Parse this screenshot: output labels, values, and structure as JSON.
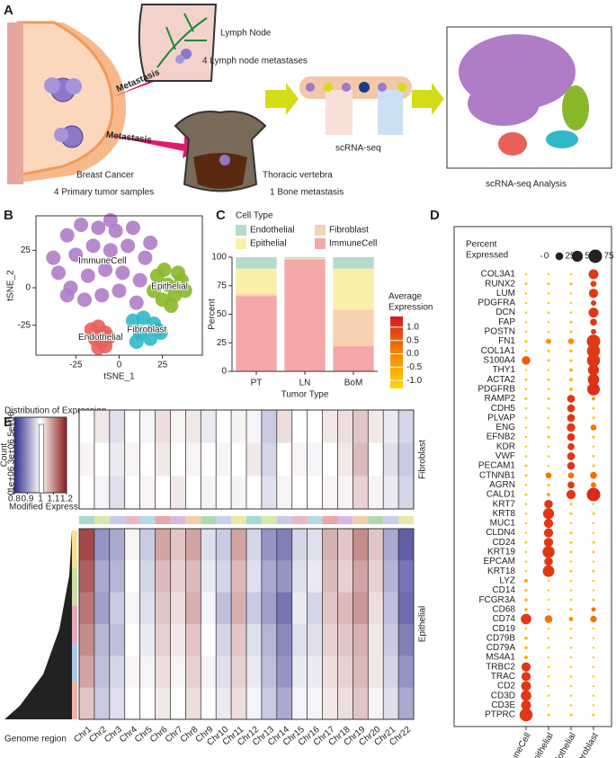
{
  "panel_labels": [
    "A",
    "B",
    "C",
    "D",
    "E"
  ],
  "panel_a": {
    "lymph_node": "Lymph Node",
    "lymph_meta": "4 Lymph node metastases",
    "metastasis": [
      "Metastasis",
      "Metastasis"
    ],
    "breast": "Breast Cancer",
    "primary": "4 Primary tumor samples",
    "vertebra": "Thoracic vertebra",
    "bone": "1 Bone metastasis",
    "scrna": "scRNA-seq",
    "analysis": "scRNA-seq Analysis"
  },
  "chart_data": [
    {
      "type": "scatter",
      "x_label": "tSNE_1",
      "y_label": "tSNE_2",
      "xlim": [
        -48,
        48
      ],
      "ylim": [
        -45,
        48
      ],
      "xticks": [
        -25,
        0,
        25
      ],
      "yticks": [
        -25,
        0,
        25
      ],
      "series": [
        {
          "name": "ImmuneCell",
          "color": "#b07cc6",
          "x": [
            -38,
            -30,
            -22,
            -12,
            -2,
            8,
            18,
            -35,
            -25,
            -15,
            -5,
            5,
            15,
            -28,
            -18,
            -8,
            2,
            12,
            -20,
            -10,
            0,
            10,
            -30,
            -5
          ],
          "y": [
            20,
            35,
            42,
            40,
            38,
            40,
            30,
            10,
            22,
            28,
            25,
            28,
            20,
            0,
            8,
            12,
            10,
            5,
            -8,
            -5,
            -2,
            -10,
            -5,
            45
          ]
        },
        {
          "name": "Epithelial",
          "color": "#8ab82a",
          "x": [
            22,
            28,
            34,
            38,
            25,
            30,
            20,
            32,
            36,
            26
          ],
          "y": [
            8,
            2,
            10,
            -2,
            -8,
            -12,
            -2,
            -5,
            5,
            12
          ]
        },
        {
          "name": "Endothelial",
          "color": "#e8605a",
          "x": [
            -16,
            -12,
            -8,
            -14,
            -10,
            -6,
            -12,
            -8
          ],
          "y": [
            -28,
            -26,
            -30,
            -34,
            -36,
            -33,
            -40,
            -39
          ]
        },
        {
          "name": "Fibroblast",
          "color": "#30b8c8",
          "x": [
            8,
            14,
            20,
            24,
            12,
            18,
            22,
            10
          ],
          "y": [
            -22,
            -20,
            -24,
            -30,
            -30,
            -34,
            -28,
            -36
          ]
        }
      ]
    },
    {
      "type": "bar",
      "legend_title": "Cell Type",
      "x_label": "Tumor Type",
      "y_label": "Percent",
      "categories": [
        "PT",
        "LN",
        "BoM"
      ],
      "ylim": [
        0,
        100
      ],
      "yticks": [
        0,
        25,
        50,
        75,
        100
      ],
      "series": [
        {
          "name": "Endothelial",
          "color": "#b4dccb",
          "values": [
            10,
            1,
            10
          ]
        },
        {
          "name": "Epithelial",
          "color": "#f8f0a8",
          "values": [
            22,
            0.5,
            36
          ]
        },
        {
          "name": "Fibroblast",
          "color": "#f8d2b2",
          "values": [
            2,
            0.5,
            32
          ]
        },
        {
          "name": "ImmuneCell",
          "color": "#f4a8a8",
          "values": [
            66,
            98,
            22
          ]
        }
      ]
    },
    {
      "type": "dot",
      "size_title": [
        "Percent",
        "Expressed"
      ],
      "size_ticks": [
        0,
        25,
        50,
        75
      ],
      "color_title": [
        "Average",
        "Expression"
      ],
      "color_lim": [
        -1.3,
        1.4
      ],
      "color_ticks": [
        {
          "value": 1,
          "label": "1.0"
        },
        0.5,
        {
          "value": 0,
          "label": "0.0"
        },
        -0.5,
        {
          "value": -1,
          "label": "-1.0"
        }
      ],
      "cell_types": [
        "ImmuneCell",
        "Epithelial",
        "Endothelial",
        "Fibroblast"
      ],
      "genes": [
        "COL3A1",
        "RUNX2",
        "LUM",
        "PDGFRA",
        "DCN",
        "FAP",
        "POSTN",
        "FN1",
        "COL1A1",
        "S100A4",
        "THY1",
        "ACTA2",
        "PDGFRB",
        "RAMP2",
        "CDH5",
        "PLVAP",
        "ENG",
        "EFNB2",
        "KDR",
        "VWF",
        "PECAM1",
        "CTNNB1",
        "AGRN",
        "CALD1",
        "KRT7",
        "KRT8",
        "MUC1",
        "CLDN4",
        "CD24",
        "KRT19",
        "EPCAM",
        "KRT18",
        "LYZ",
        "CD14",
        "FCGR3A",
        "CD68",
        "CD74",
        "CD19",
        "CD79B",
        "CD79A",
        "MS4A1",
        "TRBC2",
        "TRAC",
        "CD2",
        "CD3D",
        "CD3E",
        "PTPRC"
      ],
      "percent": [
        [
          2,
          2,
          2,
          40
        ],
        [
          3,
          3,
          3,
          15
        ],
        [
          2,
          2,
          2,
          35
        ],
        [
          2,
          2,
          2,
          12
        ],
        [
          2,
          2,
          2,
          40
        ],
        [
          2,
          2,
          3,
          20
        ],
        [
          2,
          2,
          3,
          12
        ],
        [
          3,
          12,
          15,
          75
        ],
        [
          2,
          3,
          4,
          70
        ],
        [
          30,
          3,
          3,
          70
        ],
        [
          2,
          2,
          5,
          50
        ],
        [
          3,
          3,
          5,
          55
        ],
        [
          2,
          2,
          5,
          65
        ],
        [
          3,
          3,
          25,
          5
        ],
        [
          2,
          2,
          25,
          3
        ],
        [
          2,
          2,
          25,
          3
        ],
        [
          2,
          3,
          30,
          15
        ],
        [
          2,
          3,
          25,
          3
        ],
        [
          2,
          2,
          20,
          2
        ],
        [
          2,
          2,
          25,
          3
        ],
        [
          3,
          2,
          25,
          3
        ],
        [
          3,
          15,
          15,
          20
        ],
        [
          2,
          3,
          20,
          12
        ],
        [
          3,
          5,
          35,
          75
        ],
        [
          2,
          30,
          3,
          2
        ],
        [
          2,
          50,
          3,
          3
        ],
        [
          2,
          35,
          2,
          2
        ],
        [
          2,
          35,
          3,
          2
        ],
        [
          3,
          35,
          3,
          3
        ],
        [
          2,
          60,
          3,
          3
        ],
        [
          2,
          30,
          2,
          2
        ],
        [
          2,
          55,
          3,
          3
        ],
        [
          5,
          2,
          2,
          2
        ],
        [
          3,
          2,
          2,
          2
        ],
        [
          4,
          2,
          2,
          3
        ],
        [
          4,
          2,
          3,
          8
        ],
        [
          45,
          25,
          8,
          18
        ],
        [
          2,
          2,
          2,
          2
        ],
        [
          4,
          2,
          2,
          2
        ],
        [
          4,
          2,
          2,
          2
        ],
        [
          5,
          2,
          2,
          2
        ],
        [
          35,
          2,
          2,
          2
        ],
        [
          35,
          2,
          2,
          2
        ],
        [
          40,
          2,
          2,
          2
        ],
        [
          45,
          2,
          2,
          2
        ],
        [
          40,
          2,
          2,
          2
        ],
        [
          70,
          3,
          3,
          3
        ]
      ],
      "expression": [
        [
          -1,
          -1,
          -1,
          1
        ],
        [
          -1,
          -1,
          -0.8,
          0.9
        ],
        [
          -1,
          -1,
          -1,
          1
        ],
        [
          -1,
          -1,
          -1,
          1
        ],
        [
          -1,
          -1,
          -1,
          1
        ],
        [
          -1,
          -1,
          -1,
          1
        ],
        [
          -1,
          -1,
          -1,
          1
        ],
        [
          -1,
          -0.3,
          -0.2,
          1
        ],
        [
          -1,
          -1,
          -0.9,
          1
        ],
        [
          0.5,
          -1,
          -1,
          1
        ],
        [
          -1,
          -1,
          -0.7,
          1.1
        ],
        [
          -1,
          -1,
          -0.8,
          1.1
        ],
        [
          -1,
          -1,
          -0.8,
          1.1
        ],
        [
          -1,
          -1,
          1,
          -0.5
        ],
        [
          -1,
          -1,
          1,
          -1
        ],
        [
          -1,
          -1,
          1,
          -1
        ],
        [
          -1,
          -1,
          1,
          0.2
        ],
        [
          -1,
          -0.8,
          1,
          -0.8
        ],
        [
          -1,
          -1,
          1,
          -1
        ],
        [
          -1,
          -1,
          1,
          -1
        ],
        [
          -1,
          -1,
          1,
          -1
        ],
        [
          -1,
          0.2,
          0.2,
          0.3
        ],
        [
          -1,
          -1,
          1,
          0.2
        ],
        [
          -1,
          -0.6,
          1,
          1.2
        ],
        [
          -1,
          1,
          -1,
          -1
        ],
        [
          -1,
          1,
          -1,
          -1
        ],
        [
          -1,
          1,
          -1,
          -1
        ],
        [
          -1,
          1,
          -1,
          -1
        ],
        [
          -1,
          1,
          -1,
          -1
        ],
        [
          -1,
          1,
          -1,
          -1
        ],
        [
          -1,
          1,
          -1,
          -1
        ],
        [
          -1,
          1,
          -1,
          -1
        ],
        [
          -0.5,
          -1,
          -1,
          -1
        ],
        [
          -0.8,
          -1,
          -1,
          -1
        ],
        [
          -0.7,
          -1,
          -1,
          -1
        ],
        [
          -0.6,
          -1,
          -0.8,
          0.3
        ],
        [
          1,
          0.2,
          -0.3,
          0.2
        ],
        [
          -1,
          -1,
          -1,
          -1
        ],
        [
          -0.7,
          -1,
          -1,
          -1
        ],
        [
          -0.7,
          -1,
          -1,
          -1
        ],
        [
          -0.6,
          -1,
          -1,
          -1
        ],
        [
          1,
          -1,
          -1,
          -1
        ],
        [
          1,
          -1,
          -1,
          -1
        ],
        [
          1,
          -1,
          -1,
          -1
        ],
        [
          1,
          -1,
          -1,
          -1
        ],
        [
          1,
          -1,
          -1,
          -1
        ],
        [
          1,
          -1,
          -1,
          -1
        ]
      ]
    },
    {
      "type": "heatmap",
      "inset_title": "Distribution of Expression",
      "count_label": "Count",
      "x_inset_label": "Modified Expression",
      "count_lim": [
        0,
        5500000
      ],
      "count_ticks": [
        0,
        {
          "value": 1000000,
          "label": "1e+06"
        },
        {
          "value": 3000000,
          "label": "3e+06"
        },
        {
          "value": 5000000,
          "label": "5e+06"
        }
      ],
      "color_lim": [
        0.8,
        1.2
      ],
      "color_ticks": [
        0.8,
        0.9,
        1,
        1.1,
        1.2
      ],
      "x_label": "Genome region",
      "chromosomes": [
        "Chr1",
        "Chr2",
        "Chr3",
        "Chr4",
        "Chr5",
        "Chr6",
        "Chr7",
        "Chr8",
        "Chr9",
        "Chr10",
        "Chr11",
        "Chr12",
        "Chr13",
        "Chr14",
        "Chr15",
        "Chr16",
        "Chr17",
        "Chr18",
        "Chr19",
        "Chr20",
        "Chr21",
        "Chr22"
      ],
      "series": [
        {
          "name": "Fibroblast",
          "values": [
            [
              1,
              1.02,
              0.97,
              1,
              0.99,
              1.03,
              1.01,
              1.02,
              0.98,
              1,
              1.01,
              0.99,
              0.95,
              1.03,
              1,
              1,
              1.02,
              1.03,
              1.05,
              1.02,
              0.98,
              0.96
            ],
            [
              1.01,
              1,
              0.98,
              1.01,
              1,
              1.02,
              1,
              1.01,
              1,
              0.99,
              1,
              1.02,
              0.96,
              1,
              1.01,
              0.99,
              1,
              1.02,
              1.06,
              1,
              0.97,
              0.95
            ],
            [
              1,
              0.99,
              0.97,
              1,
              1.01,
              1,
              1.02,
              1,
              1.01,
              1,
              0.99,
              1,
              0.97,
              1.01,
              1,
              1,
              1.01,
              1.01,
              1.04,
              1.01,
              0.98,
              0.96
            ]
          ]
        },
        {
          "name": "Epithelial",
          "values": [
            [
              1.16,
              0.9,
              0.92,
              1.01,
              0.95,
              1.08,
              1.05,
              1.08,
              0.97,
              0.95,
              1.08,
              0.96,
              0.9,
              0.88,
              0.96,
              0.97,
              1.07,
              1.05,
              1.1,
              1.05,
              0.92,
              0.85
            ],
            [
              1.14,
              0.92,
              0.93,
              1,
              0.96,
              1.06,
              1.04,
              1.06,
              0.98,
              0.96,
              1.06,
              0.97,
              0.92,
              0.9,
              0.97,
              0.98,
              1.06,
              1.04,
              1.08,
              1.04,
              0.93,
              0.87
            ],
            [
              1.12,
              0.91,
              0.95,
              0.99,
              0.97,
              1.05,
              1.03,
              1.07,
              0.99,
              0.94,
              1.07,
              0.95,
              0.91,
              0.87,
              0.98,
              0.96,
              1.05,
              1.06,
              1.09,
              1.03,
              0.94,
              0.86
            ],
            [
              1.1,
              0.93,
              0.94,
              1,
              0.98,
              1.04,
              1.02,
              1.05,
              1,
              0.96,
              1.05,
              0.97,
              0.93,
              0.89,
              0.97,
              0.97,
              1.04,
              1.05,
              1.07,
              1.02,
              0.95,
              0.88
            ],
            [
              1.08,
              0.94,
              0.96,
              1.01,
              0.99,
              1.03,
              1.01,
              1.04,
              0.99,
              0.97,
              1.04,
              0.98,
              0.94,
              0.9,
              0.98,
              0.98,
              1.03,
              1.04,
              1.06,
              1.02,
              0.96,
              0.9
            ],
            [
              1.05,
              0.95,
              0.97,
              1,
              1,
              1.02,
              1,
              1.03,
              1,
              0.98,
              1.03,
              0.99,
              0.95,
              0.92,
              0.99,
              0.99,
              1.02,
              1.03,
              1.05,
              1.01,
              0.97,
              0.92
            ]
          ]
        }
      ]
    }
  ]
}
